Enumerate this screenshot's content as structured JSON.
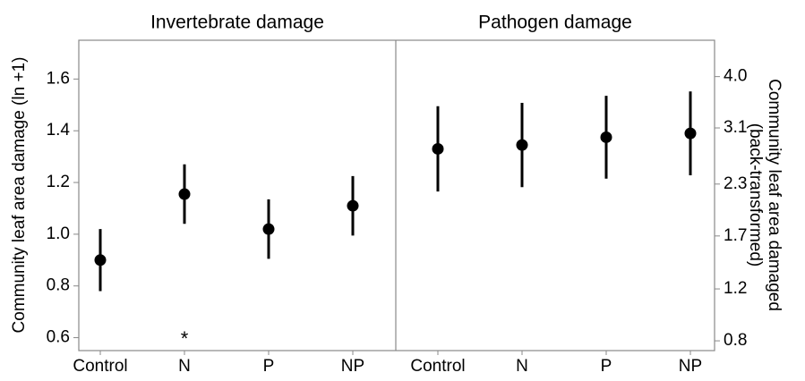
{
  "chart_data": {
    "type": "errorbar",
    "ylabel": "Community leaf area damage (ln +1)",
    "y2label": [
      "Community leaf area damaged",
      "(back-transformed)"
    ],
    "ylim": [
      0.55,
      1.75
    ],
    "yticks": [
      0.6,
      0.8,
      {
        "value": 1.0,
        "label": "1.0"
      },
      1.2,
      1.4,
      1.6
    ],
    "y2transform": "log1p",
    "y2ticks": [
      0.8,
      1.2,
      1.7,
      2.3,
      3.1,
      {
        "value": 4.0,
        "label": "4.0"
      }
    ],
    "color": "#000000",
    "panels": [
      {
        "title": "Invertebrate damage",
        "categories": [
          "Control",
          "N",
          "P",
          "NP"
        ],
        "values": [
          0.9,
          1.155,
          1.02,
          1.11
        ],
        "errors": [
          0.12,
          0.115,
          0.115,
          0.115
        ],
        "annotations": [
          null,
          "*",
          null,
          null
        ]
      },
      {
        "title": "Pathogen damage",
        "categories": [
          "Control",
          "N",
          "P",
          "NP"
        ],
        "values": [
          1.33,
          1.345,
          1.375,
          1.39
        ],
        "errors": [
          0.165,
          0.163,
          0.16,
          0.162
        ]
      }
    ]
  }
}
